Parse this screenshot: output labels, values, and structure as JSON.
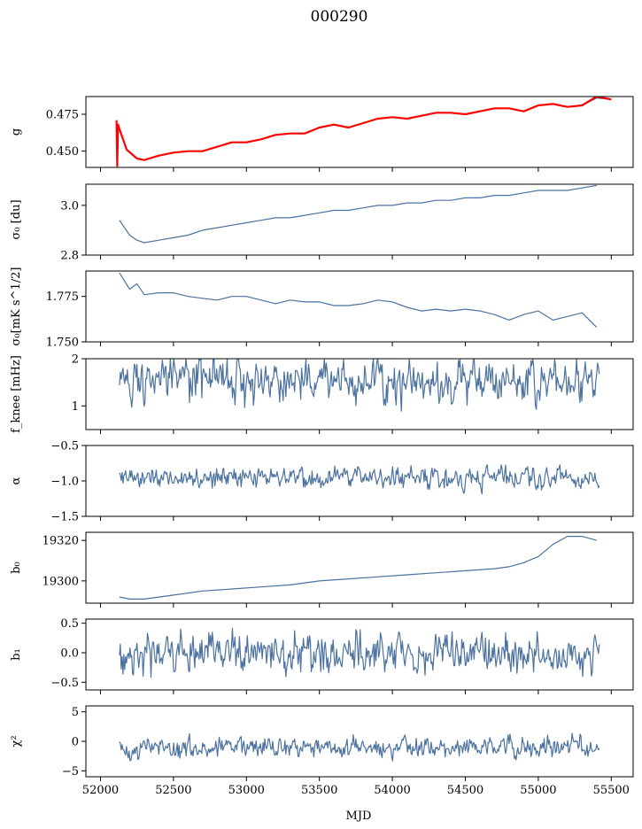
{
  "figure": {
    "title": "000290",
    "xlabel": "MJD",
    "xlim": [
      51900,
      55650
    ],
    "xticks": [
      52000,
      52500,
      53000,
      53500,
      54000,
      54500,
      55000,
      55500
    ],
    "xtick_labels": [
      "52000",
      "52500",
      "53000",
      "53500",
      "54000",
      "54500",
      "55000",
      "55500"
    ],
    "series_color": "#4c72a0",
    "overlay_color": "#ff0000"
  },
  "chart_data": [
    {
      "type": "line",
      "ylabel": "g",
      "ylim": [
        0.439,
        0.487
      ],
      "yticks": [
        0.45,
        0.475
      ],
      "ytick_labels": [
        "0.450",
        "0.475"
      ],
      "series": [
        {
          "color": "#4c72a0",
          "x": [
            52130,
            52180,
            52250,
            52300,
            52400,
            52500,
            52600,
            52700,
            52800,
            52900,
            53000,
            53100,
            53200,
            53300,
            53400,
            53500,
            53600,
            53700,
            53800,
            53900,
            54000,
            54100,
            54200,
            54300,
            54400,
            54500,
            54600,
            54700,
            54800,
            54900,
            55000,
            55100,
            55200,
            55300,
            55400,
            55500
          ],
          "y": [
            0.465,
            0.451,
            0.445,
            0.444,
            0.447,
            0.449,
            0.45,
            0.45,
            0.453,
            0.456,
            0.456,
            0.458,
            0.461,
            0.462,
            0.462,
            0.466,
            0.468,
            0.466,
            0.469,
            0.472,
            0.473,
            0.472,
            0.474,
            0.476,
            0.476,
            0.475,
            0.477,
            0.479,
            0.479,
            0.477,
            0.481,
            0.482,
            0.48,
            0.481,
            0.486,
            0.485
          ]
        },
        {
          "color": "#ff0000",
          "x": [
            52110,
            52115,
            52120,
            52130,
            52180,
            52250,
            52300,
            52400,
            52500,
            52600,
            52700,
            52800,
            52900,
            53000,
            53100,
            53200,
            53300,
            53400,
            53500,
            53600,
            53700,
            53800,
            53900,
            54000,
            54100,
            54200,
            54300,
            54400,
            54500,
            54600,
            54700,
            54800,
            54900,
            55000,
            55100,
            55200,
            55300,
            55400,
            55500
          ],
          "y": [
            0.471,
            0.44,
            0.468,
            0.465,
            0.451,
            0.445,
            0.444,
            0.447,
            0.449,
            0.45,
            0.45,
            0.453,
            0.456,
            0.456,
            0.458,
            0.461,
            0.462,
            0.462,
            0.466,
            0.468,
            0.466,
            0.469,
            0.472,
            0.473,
            0.472,
            0.474,
            0.476,
            0.476,
            0.475,
            0.477,
            0.479,
            0.479,
            0.477,
            0.481,
            0.482,
            0.48,
            0.481,
            0.487,
            0.485
          ]
        }
      ]
    },
    {
      "type": "line",
      "ylabel": "σ₀ [du]",
      "ylim": [
        2.8,
        3.085
      ],
      "yticks": [
        2.8,
        3.0
      ],
      "ytick_labels": [
        "2.8",
        "3.0"
      ],
      "series": [
        {
          "color": "#4c72a0",
          "x": [
            52130,
            52200,
            52250,
            52300,
            52400,
            52500,
            52600,
            52700,
            52800,
            52900,
            53000,
            53100,
            53200,
            53300,
            53400,
            53500,
            53600,
            53700,
            53800,
            53900,
            54000,
            54100,
            54200,
            54300,
            54400,
            54500,
            54600,
            54700,
            54800,
            54900,
            55000,
            55100,
            55200,
            55300,
            55400
          ],
          "y": [
            2.94,
            2.88,
            2.86,
            2.85,
            2.86,
            2.87,
            2.88,
            2.9,
            2.91,
            2.92,
            2.93,
            2.94,
            2.95,
            2.95,
            2.96,
            2.97,
            2.98,
            2.98,
            2.99,
            3.0,
            3.0,
            3.01,
            3.01,
            3.02,
            3.02,
            3.03,
            3.03,
            3.04,
            3.04,
            3.05,
            3.06,
            3.06,
            3.06,
            3.07,
            3.08
          ]
        }
      ]
    },
    {
      "type": "line",
      "ylabel": "σ₀[mK s^1/2]",
      "ylim": [
        1.75,
        1.789
      ],
      "yticks": [
        1.75,
        1.775
      ],
      "ytick_labels": [
        "1.750",
        "1.775"
      ],
      "series": [
        {
          "color": "#4c72a0",
          "x": [
            52130,
            52200,
            52250,
            52300,
            52400,
            52500,
            52600,
            52700,
            52800,
            52900,
            53000,
            53100,
            53200,
            53300,
            53400,
            53500,
            53600,
            53700,
            53800,
            53900,
            54000,
            54100,
            54200,
            54300,
            54400,
            54500,
            54600,
            54700,
            54800,
            54900,
            55000,
            55100,
            55200,
            55300,
            55400
          ],
          "y": [
            1.788,
            1.779,
            1.782,
            1.776,
            1.777,
            1.777,
            1.775,
            1.774,
            1.773,
            1.775,
            1.775,
            1.773,
            1.771,
            1.773,
            1.772,
            1.772,
            1.77,
            1.77,
            1.771,
            1.773,
            1.772,
            1.769,
            1.767,
            1.768,
            1.767,
            1.768,
            1.767,
            1.765,
            1.762,
            1.765,
            1.767,
            1.762,
            1.764,
            1.766,
            1.758
          ]
        }
      ]
    },
    {
      "type": "line",
      "ylabel": "f_knee [mHz]",
      "ylim": [
        0.5,
        2.0
      ],
      "yticks": [
        1,
        2
      ],
      "ytick_labels": [
        "1",
        "2"
      ],
      "noise": {
        "mean": 1.55,
        "sd": 0.22,
        "min": 0.5,
        "max": 2.0
      },
      "series": [
        {
          "color": "#4c72a0"
        }
      ]
    },
    {
      "type": "line",
      "ylabel": "α",
      "ylim": [
        -1.5,
        -0.5
      ],
      "yticks": [
        -1.5,
        -1.0,
        -0.5
      ],
      "ytick_labels": [
        "−1.5",
        "−1.0",
        "−0.5"
      ],
      "noise": {
        "mean": -0.95,
        "sd": 0.07,
        "min": -1.5,
        "max": -0.5
      },
      "series": [
        {
          "color": "#4c72a0"
        }
      ]
    },
    {
      "type": "line",
      "ylabel": "b₀",
      "ylim": [
        19289,
        19324
      ],
      "yticks": [
        19300,
        19320
      ],
      "ytick_labels": [
        "19300",
        "19320"
      ],
      "series": [
        {
          "color": "#4c72a0",
          "x": [
            52130,
            52200,
            52300,
            52500,
            52700,
            52900,
            53100,
            53300,
            53500,
            53700,
            53900,
            54100,
            54300,
            54500,
            54700,
            54800,
            54900,
            55000,
            55100,
            55200,
            55300,
            55400
          ],
          "y": [
            19292,
            19291,
            19291,
            19293,
            19295,
            19296,
            19297,
            19298,
            19300,
            19301,
            19302,
            19303,
            19304,
            19305,
            19306,
            19307,
            19309,
            19312,
            19318,
            19322,
            19322,
            19320
          ]
        }
      ]
    },
    {
      "type": "line",
      "ylabel": "b₁",
      "ylim": [
        -0.63,
        0.57
      ],
      "yticks": [
        -0.5,
        0.0,
        0.5
      ],
      "ytick_labels": [
        "−0.5",
        "0.0",
        "0.5"
      ],
      "noise": {
        "mean": 0.0,
        "sd": 0.15,
        "min": -0.6,
        "max": 0.55
      },
      "series": [
        {
          "color": "#4c72a0"
        }
      ]
    },
    {
      "type": "line",
      "ylabel": "χ²",
      "ylim": [
        -6,
        6
      ],
      "yticks": [
        -5,
        0,
        5
      ],
      "ytick_labels": [
        "−5",
        "0",
        "5"
      ],
      "noise": {
        "mean": -1.0,
        "sd": 0.8,
        "min": -4.5,
        "max": 2.5
      },
      "series": [
        {
          "color": "#4c72a0"
        }
      ]
    }
  ]
}
